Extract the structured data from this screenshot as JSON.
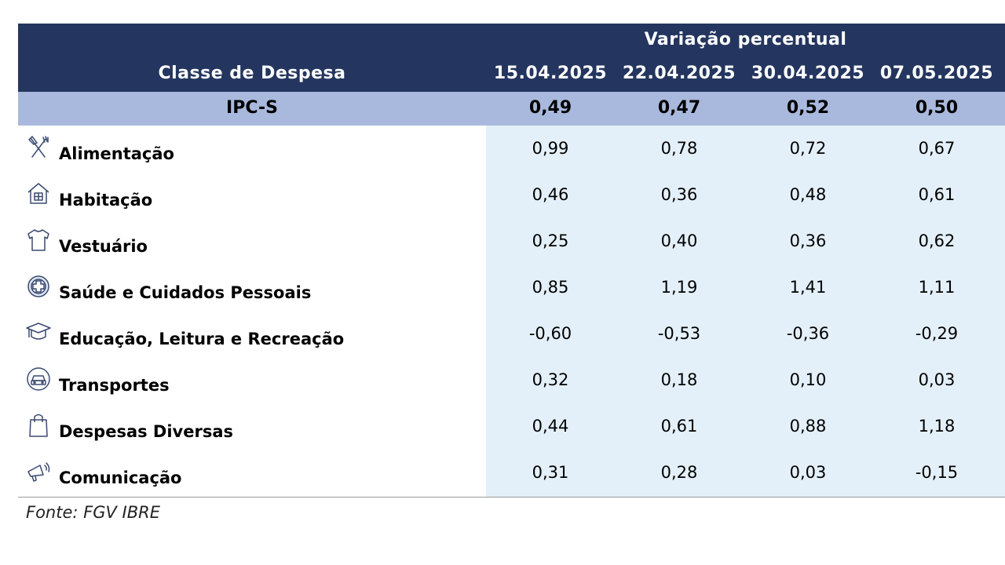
{
  "chart_data": {
    "type": "table",
    "header": {
      "group_title": "Variação percentual",
      "class_title": "Classe de Despesa",
      "dates": [
        "15.04.2025",
        "22.04.2025",
        "30.04.2025",
        "07.05.2025"
      ]
    },
    "summary": {
      "name": "IPC-S",
      "values": [
        "0,49",
        "0,47",
        "0,52",
        "0,50"
      ]
    },
    "rows": [
      {
        "icon": "fork-knife-icon",
        "label": "Alimentação",
        "values": [
          "0,99",
          "0,78",
          "0,72",
          "0,67"
        ]
      },
      {
        "icon": "house-icon",
        "label": "Habitação",
        "values": [
          "0,46",
          "0,36",
          "0,48",
          "0,61"
        ]
      },
      {
        "icon": "shirt-icon",
        "label": "Vestuário",
        "values": [
          "0,25",
          "0,40",
          "0,36",
          "0,62"
        ]
      },
      {
        "icon": "health-cross-icon",
        "label": "Saúde e Cuidados Pessoais",
        "values": [
          "0,85",
          "1,19",
          "1,41",
          "1,11"
        ]
      },
      {
        "icon": "graduation-cap-icon",
        "label": "Educação, Leitura e Recreação",
        "values": [
          "-0,60",
          "-0,53",
          "-0,36",
          "-0,29"
        ]
      },
      {
        "icon": "car-icon",
        "label": "Transportes",
        "values": [
          "0,32",
          "0,18",
          "0,10",
          "0,03"
        ]
      },
      {
        "icon": "shopping-bag-icon",
        "label": "Despesas Diversas",
        "values": [
          "0,44",
          "0,61",
          "0,88",
          "1,18"
        ]
      },
      {
        "icon": "megaphone-icon",
        "label": "Comunicação",
        "values": [
          "0,31",
          "0,28",
          "0,03",
          "-0,15"
        ]
      }
    ],
    "source": "Fonte: FGV IBRE"
  },
  "colors": {
    "header_bg": "#24365f",
    "summary_bg": "#a9b9dd",
    "values_bg": "#e4f0f9",
    "icon_stroke": "#3a4a70"
  }
}
